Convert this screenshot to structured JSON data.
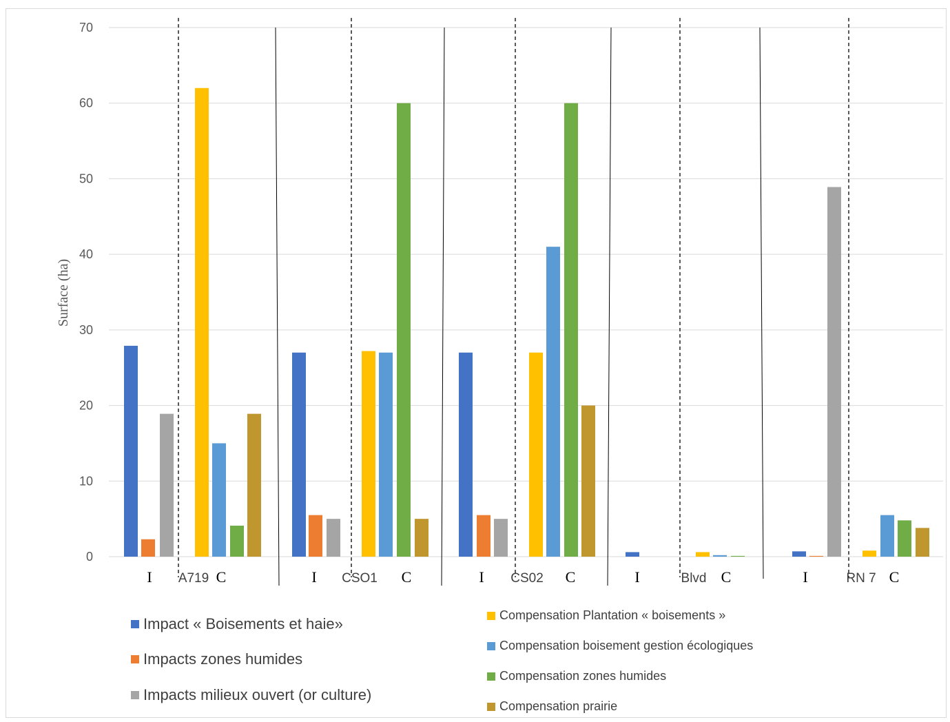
{
  "chart_data": {
    "type": "bar",
    "ylabel": "Surface (ha)",
    "ylim": [
      0,
      70
    ],
    "yticks": [
      "0",
      "10",
      "20",
      "30",
      "40",
      "50",
      "60",
      "70"
    ],
    "grid": true,
    "groups": [
      {
        "name": "A719",
        "impact_label": "I",
        "compensation_label": "C",
        "impact": [
          27.9,
          2.3,
          18.9
        ],
        "compensation": [
          62,
          15,
          4.1,
          18.9
        ]
      },
      {
        "name": "CSO1",
        "impact_label": "I",
        "compensation_label": "C",
        "impact": [
          27,
          5.5,
          5
        ],
        "compensation": [
          27.2,
          27,
          60,
          5
        ]
      },
      {
        "name": "CS02",
        "impact_label": "I",
        "compensation_label": "C",
        "impact": [
          27,
          5.5,
          5
        ],
        "compensation": [
          27,
          41,
          60,
          20
        ]
      },
      {
        "name": "Blvd",
        "impact_label": "I",
        "compensation_label": "C",
        "impact": [
          0.6,
          0,
          0
        ],
        "compensation": [
          0.6,
          0.2,
          0.1,
          0
        ]
      },
      {
        "name": "RN 7",
        "impact_label": "I",
        "compensation_label": "C",
        "impact": [
          0.7,
          0.1,
          48.9
        ],
        "compensation": [
          0.8,
          5.5,
          4.8,
          3.8
        ]
      }
    ],
    "impact_series": [
      {
        "name": "Impact « Boisements et haie»",
        "color": "#4472c4"
      },
      {
        "name": "Impacts zones humides",
        "color": "#ed7d31"
      },
      {
        "name": "Impacts milieux ouvert (or culture)",
        "color": "#a5a5a5"
      }
    ],
    "compensation_series": [
      {
        "name": "Compensation Plantation « boisements »",
        "color": "#ffc000"
      },
      {
        "name": "Compensation boisement gestion écologiques",
        "color": "#5b9bd5"
      },
      {
        "name": "Compensation zones humides",
        "color": "#70ad47"
      },
      {
        "name": "Compensation prairie",
        "color": "#c0962f"
      }
    ],
    "legend_placement": "bottom"
  }
}
